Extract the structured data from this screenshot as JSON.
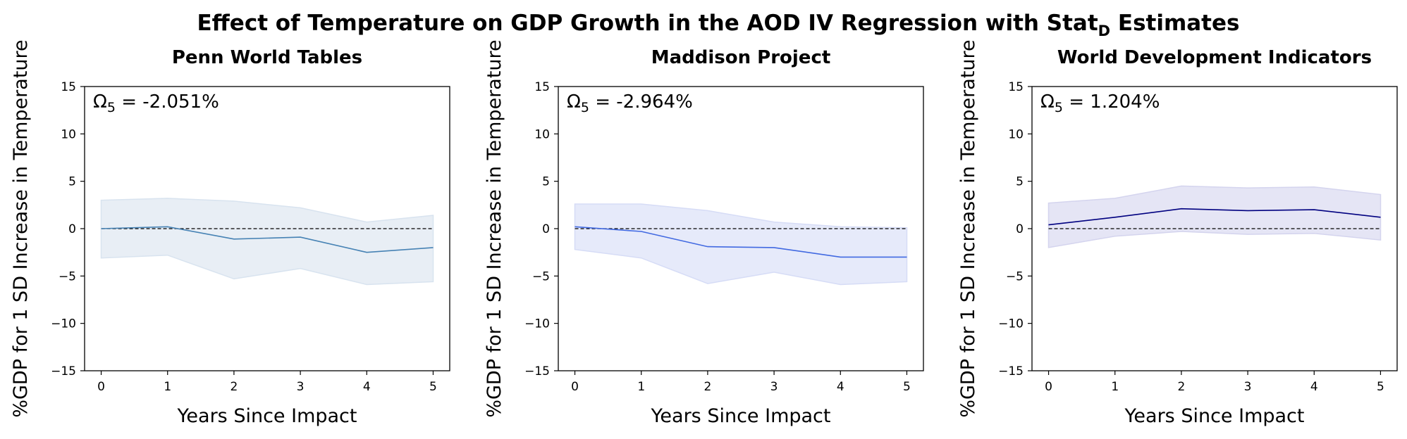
{
  "figure": {
    "title_prefix": "Effect of Temperature on GDP Growth in the AOD IV Regression with ",
    "title_stat": "Stat",
    "title_sub": "D",
    "title_suffix": " Estimates"
  },
  "chart_data": [
    {
      "type": "line",
      "title": "Penn World Tables",
      "xlabel": "Years Since Impact",
      "ylabel": "%GDP for 1 SD Increase in Temperature",
      "x": [
        0,
        1,
        2,
        3,
        4,
        5
      ],
      "xticks": [
        "0",
        "1",
        "2",
        "3",
        "4",
        "5"
      ],
      "yticks": [
        "15",
        "10",
        "5",
        "0",
        "−5",
        "−10",
        "−15"
      ],
      "ylim": [
        -15,
        15
      ],
      "xlim": [
        -0.25,
        5.25
      ],
      "series": [
        {
          "values": [
            0.0,
            0.2,
            -1.1,
            -0.9,
            -2.5,
            -2.0
          ],
          "lower": [
            -3.1,
            -2.8,
            -5.3,
            -4.2,
            -5.9,
            -5.6
          ],
          "upper": [
            3.0,
            3.2,
            2.9,
            2.2,
            0.7,
            1.4
          ],
          "color": "#4682b4",
          "band_color": "#d8e3ef"
        }
      ],
      "reference_line": 0,
      "annotation": {
        "symbol": "Ω",
        "sub": "5",
        "text": " = -2.051%"
      }
    },
    {
      "type": "line",
      "title": "Maddison Project",
      "xlabel": "Years Since Impact",
      "ylabel": "%GDP for 1 SD Increase in Temperature",
      "x": [
        0,
        1,
        2,
        3,
        4,
        5
      ],
      "xticks": [
        "0",
        "1",
        "2",
        "3",
        "4",
        "5"
      ],
      "yticks": [
        "15",
        "10",
        "5",
        "0",
        "−5",
        "−10",
        "−15"
      ],
      "ylim": [
        -15,
        15
      ],
      "xlim": [
        -0.25,
        5.25
      ],
      "series": [
        {
          "values": [
            0.2,
            -0.3,
            -1.9,
            -2.0,
            -3.0,
            -3.0
          ],
          "lower": [
            -2.2,
            -3.1,
            -5.8,
            -4.6,
            -5.9,
            -5.6
          ],
          "upper": [
            2.6,
            2.6,
            1.9,
            0.7,
            0.2,
            0.1
          ],
          "color": "#4169e1",
          "band_color": "#d6dcf6"
        }
      ],
      "reference_line": 0,
      "annotation": {
        "symbol": "Ω",
        "sub": "5",
        "text": " = -2.964%"
      }
    },
    {
      "type": "line",
      "title": "World Development Indicators",
      "xlabel": "Years Since Impact",
      "ylabel": "%GDP for 1 SD Increase in Temperature",
      "x": [
        0,
        1,
        2,
        3,
        4,
        5
      ],
      "xticks": [
        "0",
        "1",
        "2",
        "3",
        "4",
        "5"
      ],
      "yticks": [
        "15",
        "10",
        "5",
        "0",
        "−5",
        "−10",
        "−15"
      ],
      "ylim": [
        -15,
        15
      ],
      "xlim": [
        -0.25,
        5.25
      ],
      "series": [
        {
          "values": [
            0.4,
            1.2,
            2.1,
            1.9,
            2.0,
            1.2
          ],
          "lower": [
            -2.0,
            -0.8,
            -0.3,
            -0.6,
            -0.5,
            -1.2
          ],
          "upper": [
            2.7,
            3.2,
            4.5,
            4.3,
            4.4,
            3.6
          ],
          "color": "#000080",
          "band_color": "#d4d4ee"
        }
      ],
      "reference_line": 0,
      "annotation": {
        "symbol": "Ω",
        "sub": "5",
        "text": " = 1.204%"
      }
    }
  ]
}
